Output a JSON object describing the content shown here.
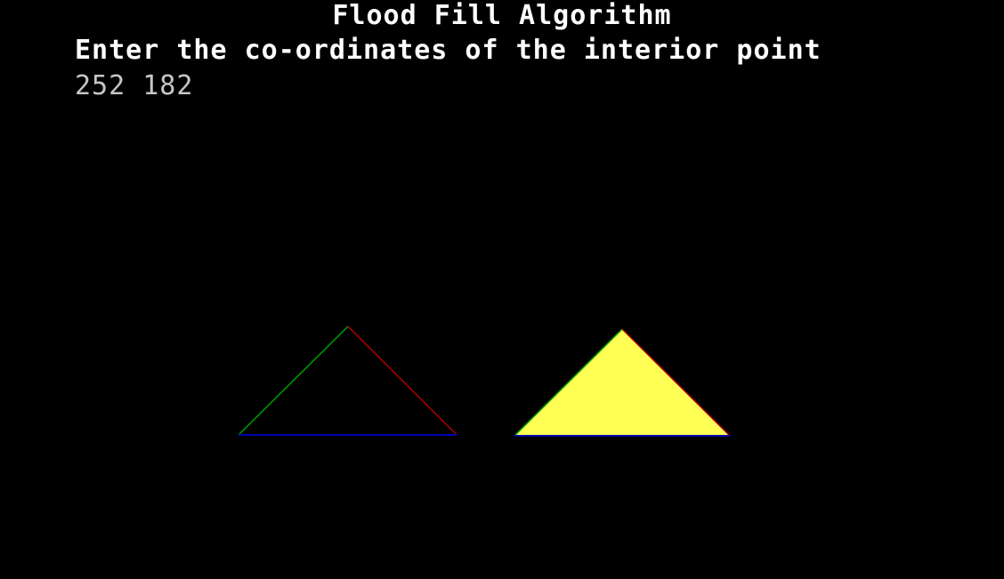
{
  "title": "Flood Fill Algorithm",
  "prompt": "Enter the co-ordinates of the interior point",
  "input_value": "252 182",
  "colors": {
    "background": "#000000",
    "text": "#ffffff",
    "input_text": "#c6c6c6",
    "edge_left": "#00a000",
    "edge_right": "#b00000",
    "edge_base": "#0000b0",
    "fill": "#ffff55"
  },
  "shapes": {
    "outline_triangle": {
      "filled": false
    },
    "filled_triangle": {
      "filled": true
    }
  }
}
